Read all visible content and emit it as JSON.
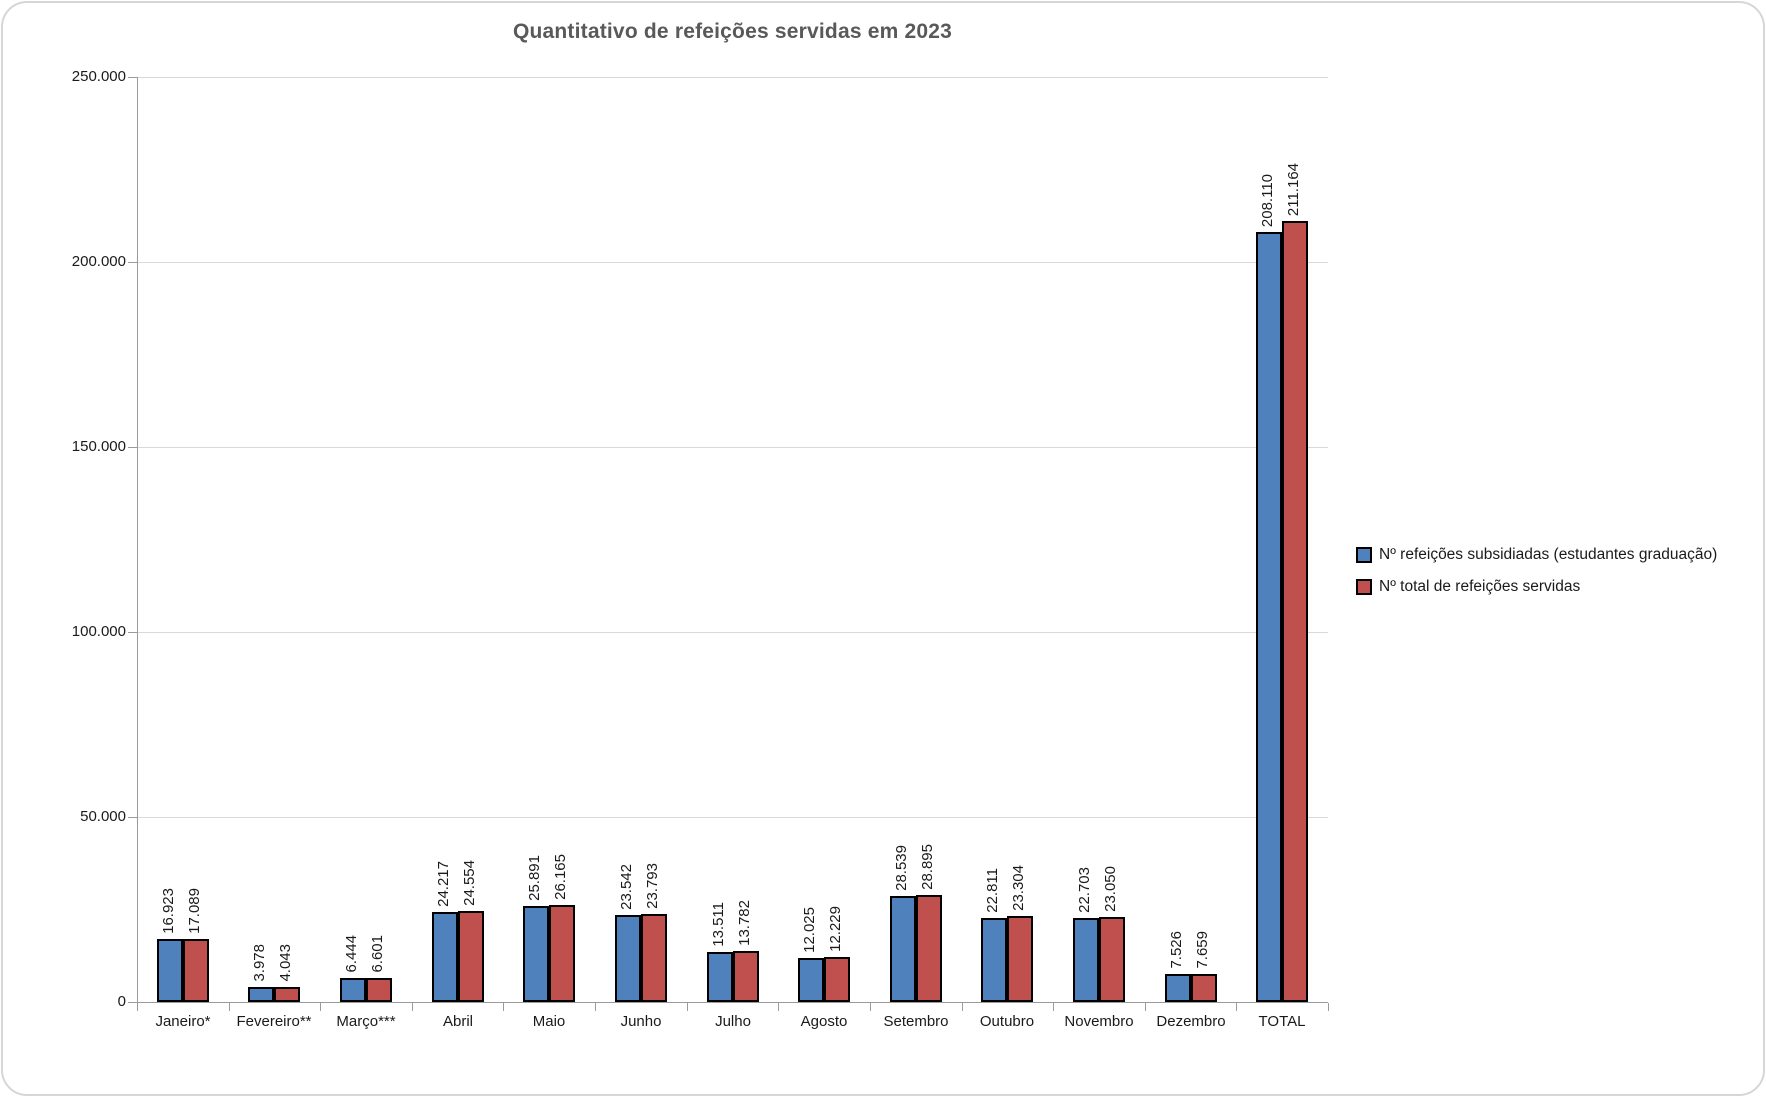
{
  "chart_title": "Quantitativo de refeições servidas em 2023",
  "colors": {
    "series_blue": "#4F81BD",
    "series_red": "#C0504D",
    "bar_border": "#000000",
    "gridline": "#D9D9D9",
    "axis": "#9B9B9B",
    "title_text": "#595959"
  },
  "chart_data": {
    "type": "bar",
    "title": "Quantitativo de refeições servidas em 2023",
    "categories": [
      "Janeiro*",
      "Fevereiro**",
      "Março***",
      "Abril",
      "Maio",
      "Junho",
      "Julho",
      "Agosto",
      "Setembro",
      "Outubro",
      "Novembro",
      "Dezembro",
      "TOTAL"
    ],
    "series": [
      {
        "name": "Nº refeições subsidiadas (estudantes graduação)",
        "color": "#4F81BD",
        "values": [
          16923,
          3978,
          6444,
          24217,
          25891,
          23542,
          13511,
          12025,
          28539,
          22811,
          22703,
          7526,
          208110
        ],
        "labels": [
          "16.923",
          "3.978",
          "6.444",
          "24.217",
          "25.891",
          "23.542",
          "13.511",
          "12.025",
          "28.539",
          "22.811",
          "22.703",
          "7.526",
          "208.110"
        ]
      },
      {
        "name": "Nº total de refeições servidas",
        "color": "#C0504D",
        "values": [
          17089,
          4043,
          6601,
          24554,
          26165,
          23793,
          13782,
          12229,
          28895,
          23304,
          23050,
          7659,
          211164
        ],
        "labels": [
          "17.089",
          "4.043",
          "6.601",
          "24.554",
          "26.165",
          "23.793",
          "13.782",
          "12.229",
          "28.895",
          "23.304",
          "23.050",
          "7.659",
          "211.164"
        ]
      }
    ],
    "ylim": [
      0,
      250000
    ],
    "y_ticks": [
      0,
      50000,
      100000,
      150000,
      200000,
      250000
    ],
    "y_tick_labels": [
      "0",
      "50.000",
      "100.000",
      "150.000",
      "200.000",
      "250.000"
    ],
    "xlabel": "",
    "ylabel": "",
    "grid": true,
    "legend_position": "right",
    "data_labels": "rotated-vertical-above-bars"
  }
}
